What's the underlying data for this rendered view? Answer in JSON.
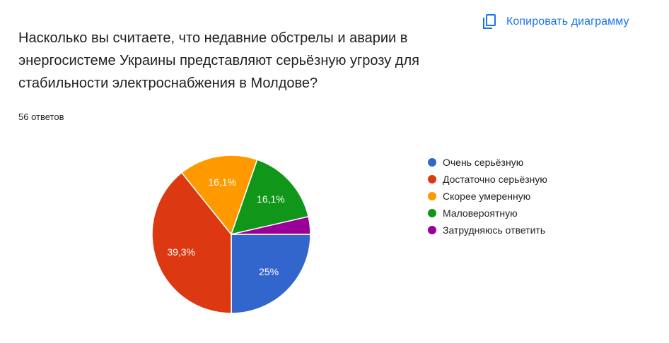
{
  "header": {
    "copy_label": "Копировать диаграмму",
    "copy_icon": "copy-icon"
  },
  "question": "Насколько вы считаете, что недавние обстрелы и аварии в энергосистеме Украины представляют серьёзную угрозу для стабильности электроснабжения в Молдове?",
  "responses_label": "56 ответов",
  "colors": {
    "accent": "#1a73e8"
  },
  "chart_data": {
    "type": "pie",
    "labels": [
      "Очень серьёзную",
      "Достаточно серьёзную",
      "Скорее умеренную",
      "Маловероятную",
      "Затрудняюсь ответить"
    ],
    "values": [
      25,
      39.3,
      16.1,
      16.1,
      3.6
    ],
    "data_labels": [
      "25%",
      "39,3%",
      "16,1%",
      "16,1%",
      ""
    ],
    "colors": [
      "#3366cc",
      "#dc3912",
      "#ff9900",
      "#109618",
      "#990099"
    ],
    "start": "3 o'clock",
    "direction": "clockwise",
    "legend_position": "right"
  }
}
